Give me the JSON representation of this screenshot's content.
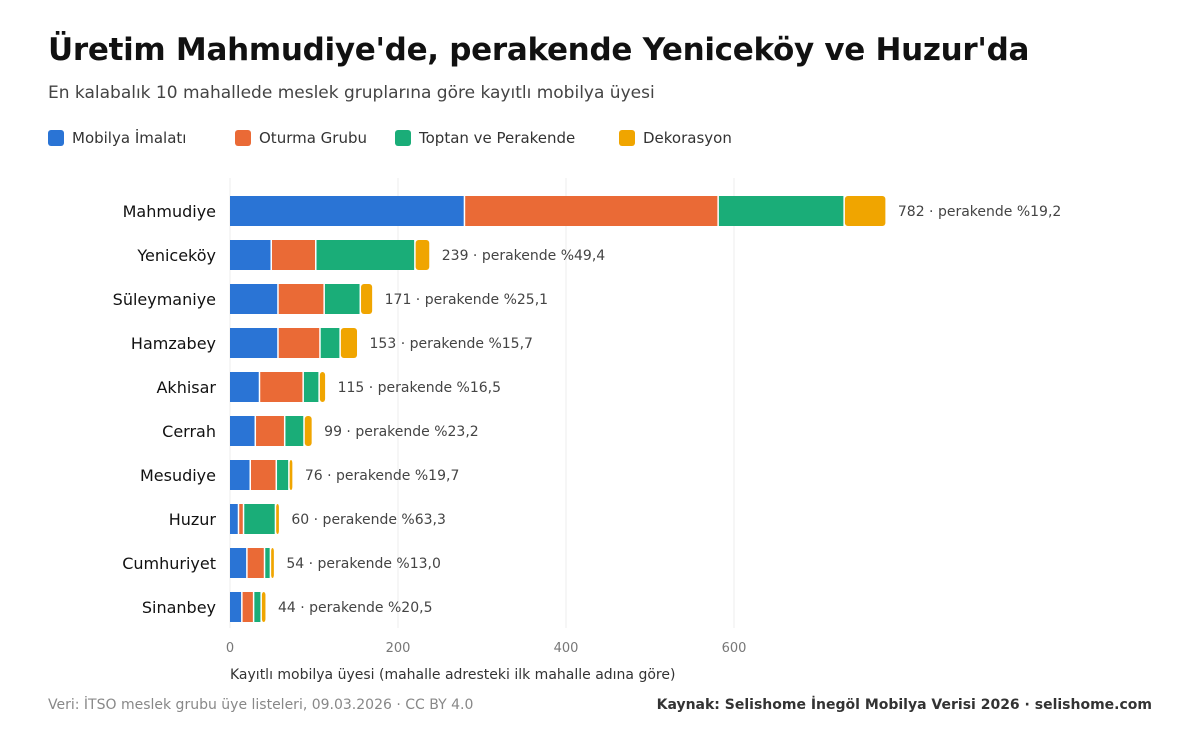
{
  "title": "Üretim Mahmudiye'de, perakende Yeniceköy ve Huzur'da",
  "subtitle": "En kalabalık 10 mahallede meslek gruplarına göre kayıtlı mobilya üyesi",
  "footer": {
    "left": "Veri: İTSO meslek grubu üye listeleri, 09.03.2026 · CC BY 4.0",
    "right": "Kaynak: Selishome İnegöl Mobilya Verisi 2026 · selishome.com"
  },
  "chart_data": {
    "type": "bar",
    "orientation": "horizontal",
    "stacked": true,
    "categories": [
      "Mahmudiye",
      "Yeniceköy",
      "Süleymaniye",
      "Hamzabey",
      "Akhisar",
      "Cerrah",
      "Mesudiye",
      "Huzur",
      "Cumhuriyet",
      "Sinanbey"
    ],
    "series": [
      {
        "name": "Mobilya İmalatı",
        "color": "#2a74d5",
        "values": [
          280,
          50,
          58,
          58,
          36,
          31,
          25,
          11,
          21,
          15
        ]
      },
      {
        "name": "Oturma Grubu",
        "color": "#ea6a36",
        "values": [
          302,
          53,
          55,
          50,
          52,
          35,
          31,
          6,
          21,
          14
        ]
      },
      {
        "name": "Toptan ve Perakende",
        "color": "#1aad78",
        "values": [
          150,
          118,
          43,
          24,
          19,
          23,
          15,
          38,
          7,
          9
        ]
      },
      {
        "name": "Dekorasyon",
        "color": "#f0a500",
        "values": [
          50,
          18,
          15,
          21,
          8,
          10,
          5,
          5,
          5,
          6
        ]
      }
    ],
    "totals": [
      782,
      239,
      171,
      153,
      115,
      99,
      76,
      60,
      54,
      44
    ],
    "value_labels": [
      "782 · perakende %19,2",
      "239 · perakende %49,4",
      "171 · perakende %25,1",
      "153 · perakende %15,7",
      "115 · perakende %16,5",
      "99 · perakende %23,2",
      "76 · perakende %19,7",
      "60 · perakende %63,3",
      "54 · perakende %13,0",
      "44 · perakende %20,5"
    ],
    "xlabel": "Kayıtlı mobilya üyesi (mahalle adresteki ilk mahalle adına göre)",
    "xticks": [
      0,
      200,
      400,
      600
    ],
    "xlim": [
      0,
      1100
    ],
    "grid": true,
    "legend_position": "top-left"
  }
}
